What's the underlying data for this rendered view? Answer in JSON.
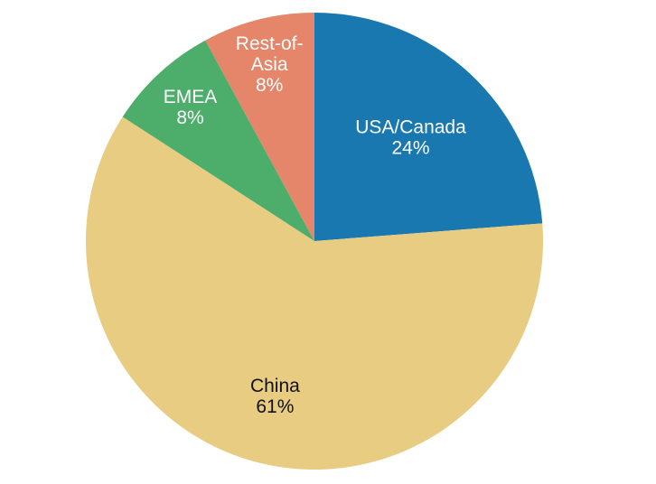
{
  "chart_data": {
    "type": "pie",
    "title": "",
    "start_angle_deg": 0,
    "direction": "clockwise",
    "slices": [
      {
        "label": "USA/Canada",
        "value": 24,
        "pct_label": "24%",
        "color": "#1a78b0",
        "label_color": "#ffffff",
        "label_lines": [
          "USA/Canada"
        ]
      },
      {
        "label": "China",
        "value": 61,
        "pct_label": "61%",
        "color": "#e8cc82",
        "label_color": "#111111",
        "label_lines": [
          "China"
        ]
      },
      {
        "label": "EMEA",
        "value": 8,
        "pct_label": "8%",
        "color": "#4dad6a",
        "label_color": "#ffffff",
        "label_lines": [
          "EMEA"
        ]
      },
      {
        "label": "Rest-of-Asia",
        "value": 8,
        "pct_label": "8%",
        "color": "#e5856a",
        "label_color": "#ffffff",
        "label_lines": [
          "Rest-of-",
          "Asia"
        ]
      }
    ]
  }
}
